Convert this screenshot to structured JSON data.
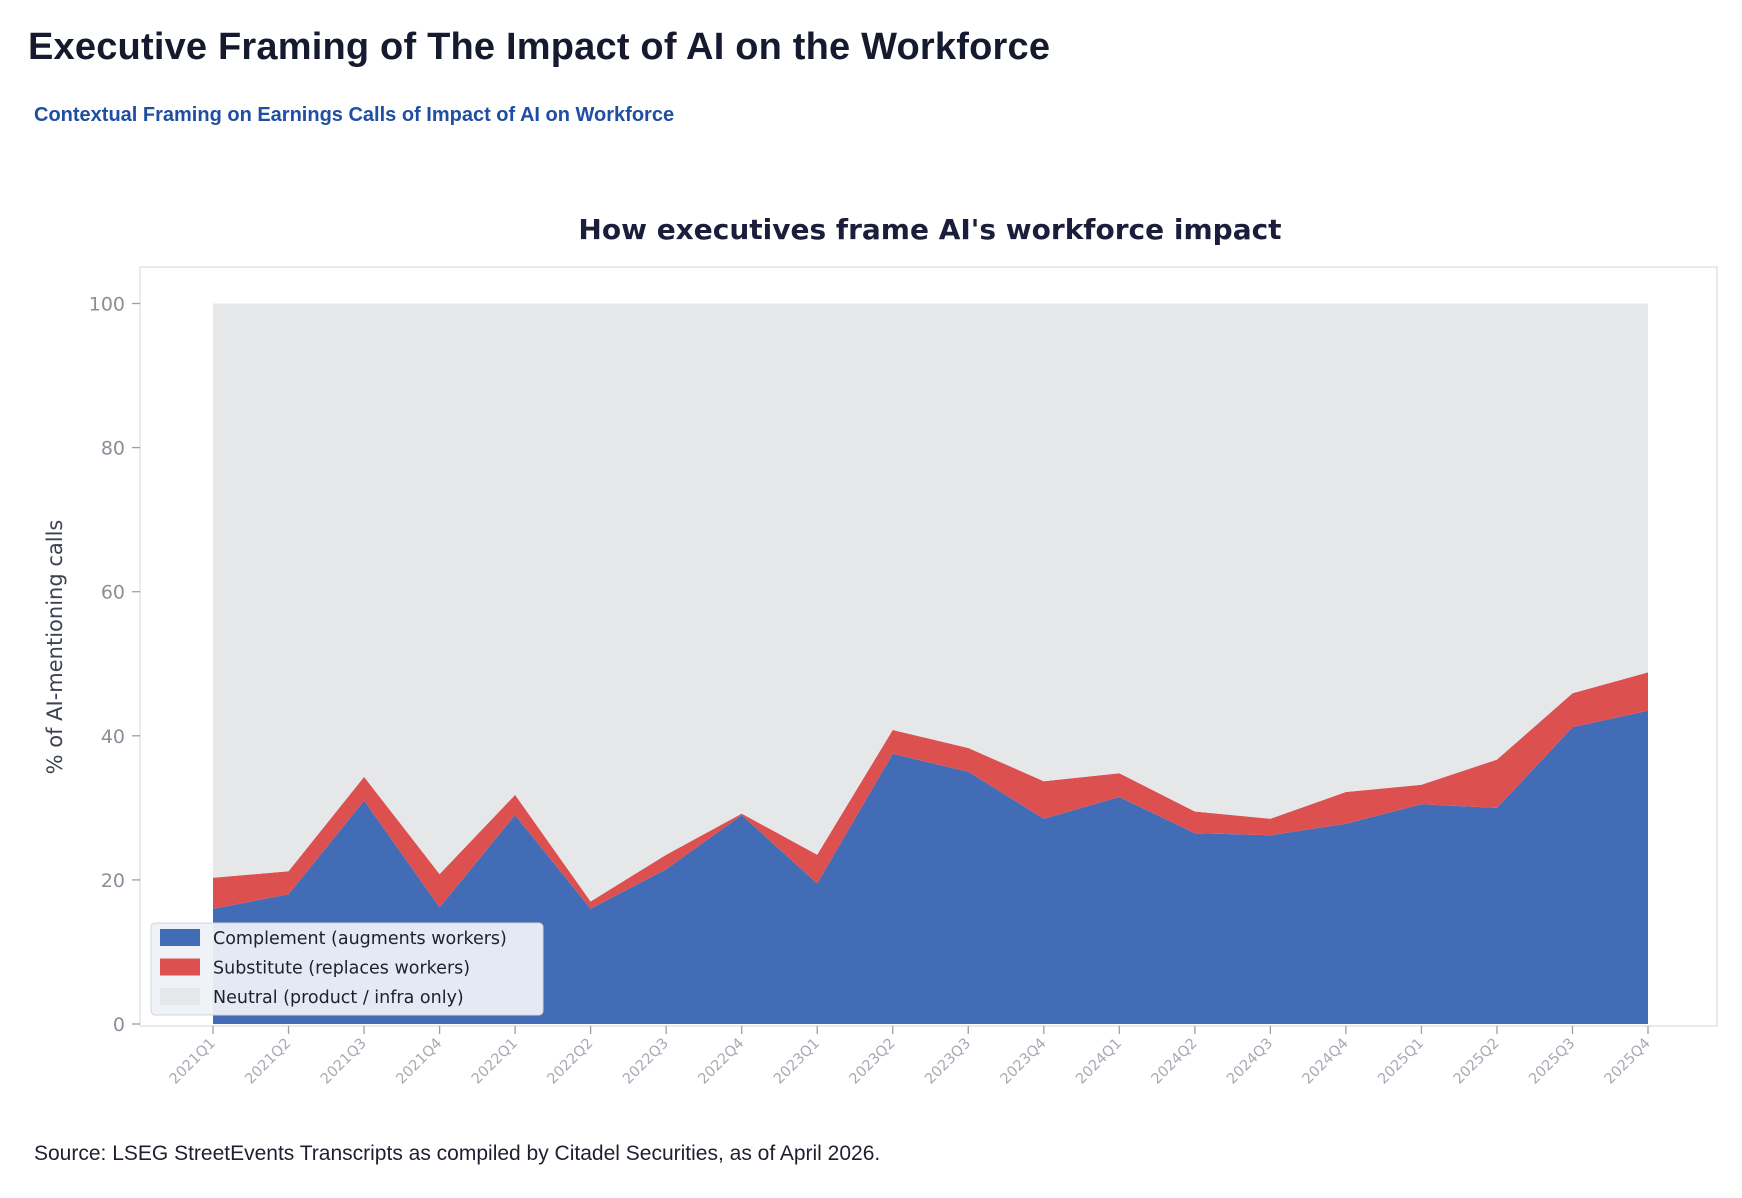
{
  "header": {
    "title": "Executive Framing of The Impact of AI on the Workforce",
    "subtitle": "Contextual Framing on Earnings Calls of Impact of AI on Workforce"
  },
  "footer": {
    "source": "Source: LSEG StreetEvents Transcripts as compiled by Citadel Securities, as of April 2026."
  },
  "chart_data": {
    "type": "area",
    "stacked": true,
    "title": "How executives frame AI's workforce impact",
    "xlabel": "",
    "ylabel": "% of AI-mentioning calls",
    "ylim": [
      0,
      100
    ],
    "yticks": [
      0,
      20,
      40,
      60,
      80,
      100
    ],
    "grid": false,
    "legend_position": "lower-left",
    "categories": [
      "2021Q1",
      "2021Q2",
      "2021Q3",
      "2021Q4",
      "2022Q1",
      "2022Q2",
      "2022Q3",
      "2022Q4",
      "2023Q1",
      "2023Q2",
      "2023Q3",
      "2023Q4",
      "2024Q1",
      "2024Q2",
      "2024Q3",
      "2024Q4",
      "2025Q1",
      "2025Q2",
      "2025Q3",
      "2025Q4"
    ],
    "series": [
      {
        "name": "Complement (augments workers)",
        "color": "#436cb6",
        "values": [
          16.0,
          18.0,
          31.0,
          16.2,
          29.0,
          16.0,
          21.5,
          29.0,
          19.5,
          37.5,
          35.0,
          28.5,
          31.5,
          26.5,
          26.2,
          27.8,
          30.5,
          30.0,
          41.2,
          43.5
        ]
      },
      {
        "name": "Substitute (replaces workers)",
        "color": "#dc5050",
        "values": [
          4.3,
          3.2,
          3.3,
          4.6,
          2.8,
          1.0,
          2.0,
          0.2,
          4.0,
          3.3,
          3.3,
          5.2,
          3.3,
          3.0,
          2.3,
          4.4,
          2.7,
          6.7,
          4.7,
          5.3
        ]
      },
      {
        "name": "Neutral (product / infra only)",
        "color": "#e6e7e9",
        "values": [
          79.7,
          78.8,
          65.7,
          79.2,
          68.2,
          83.0,
          76.5,
          70.8,
          76.5,
          59.2,
          61.7,
          66.3,
          65.2,
          70.5,
          71.5,
          67.8,
          66.8,
          63.3,
          54.1,
          51.2
        ]
      }
    ]
  }
}
